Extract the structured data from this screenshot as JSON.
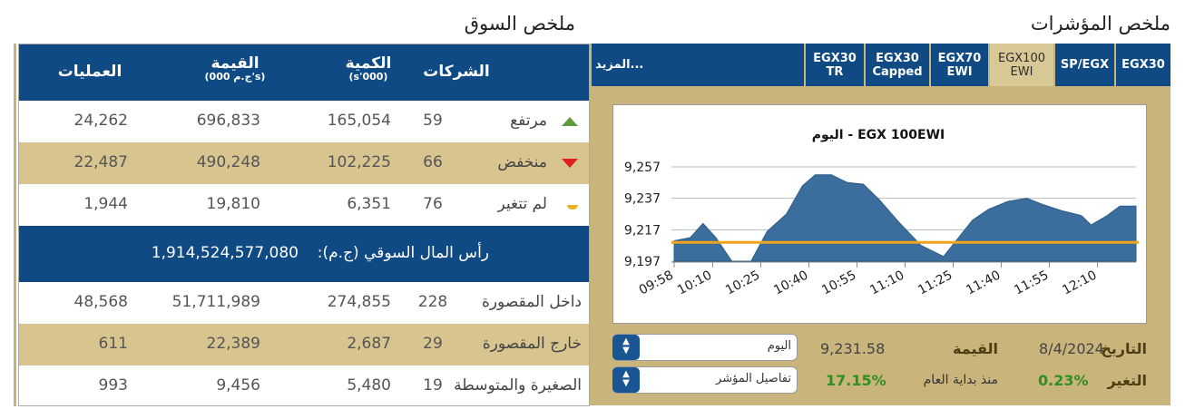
{
  "market_summary": {
    "title": "ملخص السوق",
    "headers": [
      {
        "label": "الشركات"
      },
      {
        "label": "الكمية",
        "unit": "(s'000)"
      },
      {
        "label": "القيمة",
        "unit": "(ج.م 000's)"
      },
      {
        "label": "العمليات"
      }
    ],
    "rows": [
      {
        "name": "مرتفع",
        "trend": "up",
        "cells": [
          "59",
          "165,054",
          "696,833",
          "24,262"
        ]
      },
      {
        "name": "منخفض",
        "trend": "down",
        "cells": [
          "66",
          "102,225",
          "490,248",
          "22,487"
        ]
      },
      {
        "name": "لم تتغير",
        "trend": "flat",
        "cells": [
          "76",
          "6,351",
          "19,810",
          "1,944"
        ]
      }
    ],
    "market_cap": {
      "label": "رأس المال السوقي (ج.م):",
      "value": "1,914,524,577,080"
    },
    "segments": [
      {
        "name": "داخل المقصورة",
        "cells": [
          "228",
          "274,855",
          "51,711,989",
          "48,568"
        ]
      },
      {
        "name": "خارج المقصورة",
        "cells": [
          "29",
          "2,687",
          "22,389",
          "611"
        ]
      },
      {
        "name": "الصغيرة والمتوسطة",
        "cells": [
          "19",
          "5,480",
          "9,456",
          "993"
        ]
      }
    ]
  },
  "indices": {
    "title": "ملخص المؤشرات",
    "tabs": [
      {
        "lines": [
          "EGX30"
        ]
      },
      {
        "lines": [
          "SP/EGX"
        ]
      },
      {
        "lines": [
          "EGX100",
          "EWI"
        ]
      },
      {
        "lines": [
          "EGX70",
          "EWI"
        ]
      },
      {
        "lines": [
          "EGX30",
          "Capped"
        ]
      },
      {
        "lines": [
          "EGX30",
          "TR"
        ]
      }
    ],
    "active_tab": 2,
    "more": "المزيد...",
    "details": {
      "date_label": "التاريخ",
      "date": "8/4/2024",
      "value_label": "القيمة",
      "value": "9,231.58",
      "change_label": "التغير",
      "change": "0.23%",
      "ytd_label": "منذ بداية العام",
      "ytd": "17.15%"
    },
    "dropdowns": [
      "اليوم",
      "تفاصيل المؤشر"
    ]
  },
  "chart_data": {
    "type": "area",
    "title": "EGX 100EWI  - اليوم",
    "x": [
      "09:58",
      "10:03",
      "10:07",
      "10:11",
      "10:16",
      "10:22",
      "10:27",
      "10:33",
      "10:38",
      "10:42",
      "10:47",
      "10:52",
      "10:57",
      "11:02",
      "11:08",
      "11:15",
      "11:22",
      "11:31",
      "11:36",
      "11:42",
      "11:48",
      "11:53",
      "11:59",
      "12:05",
      "12:08",
      "12:13",
      "12:17",
      "12:22"
    ],
    "values": [
      9210,
      9212,
      9221,
      9212,
      9197,
      9197,
      9216,
      9227,
      9245,
      9252,
      9252,
      9247,
      9246,
      9236,
      9222,
      9207,
      9200,
      9223,
      9230,
      9235,
      9237,
      9233,
      9229,
      9226,
      9220,
      9226,
      9232,
      9232
    ],
    "color": "#3b6e9c",
    "reference_line": 9209,
    "reference_color": "#f0a41e",
    "xlim": [
      "09:58",
      "12:22"
    ],
    "xticks": [
      "09:58",
      "10:10",
      "10:25",
      "10:40",
      "10:55",
      "11:10",
      "11:25",
      "11:40",
      "11:55",
      "12:10"
    ],
    "ylim": [
      9197,
      9257
    ],
    "yticks": [
      {
        "value": 9197,
        "label": "9,197"
      },
      {
        "value": 9217,
        "label": "9,217"
      },
      {
        "value": 9237,
        "label": "9,237"
      },
      {
        "value": 9257,
        "label": "9,257"
      }
    ],
    "grid": true
  }
}
